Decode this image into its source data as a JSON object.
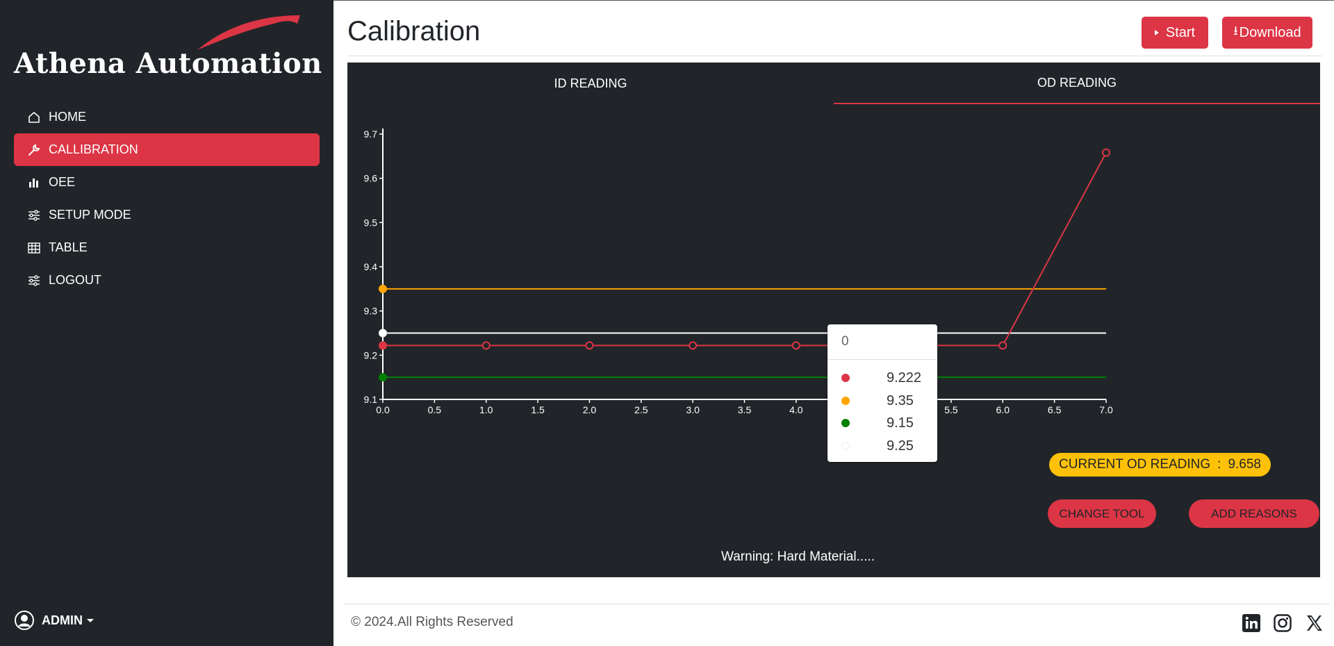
{
  "sidebar": {
    "brand": "Athena Automation",
    "items": [
      {
        "label": "HOME",
        "icon": "home-icon"
      },
      {
        "label": "CALLIBRATION",
        "icon": "wrench-icon"
      },
      {
        "label": "OEE",
        "icon": "bar-chart-icon"
      },
      {
        "label": "SETUP MODE",
        "icon": "sliders-icon"
      },
      {
        "label": "TABLE",
        "icon": "table-icon"
      },
      {
        "label": "LOGOUT",
        "icon": "sliders-icon"
      }
    ],
    "active_index": 1,
    "user": "ADMIN"
  },
  "header": {
    "title": "Calibration",
    "start_label": "Start",
    "download_label": "Download"
  },
  "tabs": {
    "id_label": "ID READING",
    "od_label": "OD READING",
    "active": "OD READING"
  },
  "chart_data": {
    "type": "line",
    "x_ticks": [
      "0.0",
      "0.5",
      "1.0",
      "1.5",
      "2.0",
      "2.5",
      "3.0",
      "3.5",
      "4.0",
      "4.5",
      "5.0",
      "5.5",
      "6.0",
      "6.5",
      "7.0"
    ],
    "y_ticks": [
      "9.1",
      "9.2",
      "9.3",
      "9.4",
      "9.5",
      "9.6",
      "9.7"
    ],
    "xlim": [
      0,
      7
    ],
    "ylim": [
      9.1,
      9.7
    ],
    "series": [
      {
        "color": "#dc3545",
        "x": [
          0,
          1,
          2,
          3,
          4,
          5,
          6,
          7
        ],
        "values": [
          9.222,
          9.222,
          9.222,
          9.222,
          9.222,
          9.222,
          9.222,
          9.658
        ]
      },
      {
        "color": "#ffa500",
        "x": [
          0,
          7
        ],
        "values": [
          9.35,
          9.35
        ]
      },
      {
        "color": "#008000",
        "x": [
          0,
          7
        ],
        "values": [
          9.15,
          9.15
        ]
      },
      {
        "color": "#ffffff",
        "x": [
          0,
          7
        ],
        "values": [
          9.25,
          9.25
        ]
      }
    ],
    "grid": false
  },
  "tooltip": {
    "title": "0",
    "rows": [
      {
        "color": "#dc3545",
        "value": "9.222"
      },
      {
        "color": "#ffa500",
        "value": "9.35"
      },
      {
        "color": "#008000",
        "value": "9.15"
      },
      {
        "color": "#ffffff",
        "value": "9.25"
      }
    ]
  },
  "reading": {
    "label": "CURRENT OD READING",
    "separator": ":",
    "value": "9.658"
  },
  "actions": {
    "change_tool": "CHANGE TOOL",
    "add_reasons": "ADD REASONS"
  },
  "warning": "Warning: Hard Material.....",
  "footer": {
    "copyright": "© 2024.All Rights Reserved",
    "socials": [
      "linkedin-icon",
      "instagram-icon",
      "x-icon"
    ]
  }
}
